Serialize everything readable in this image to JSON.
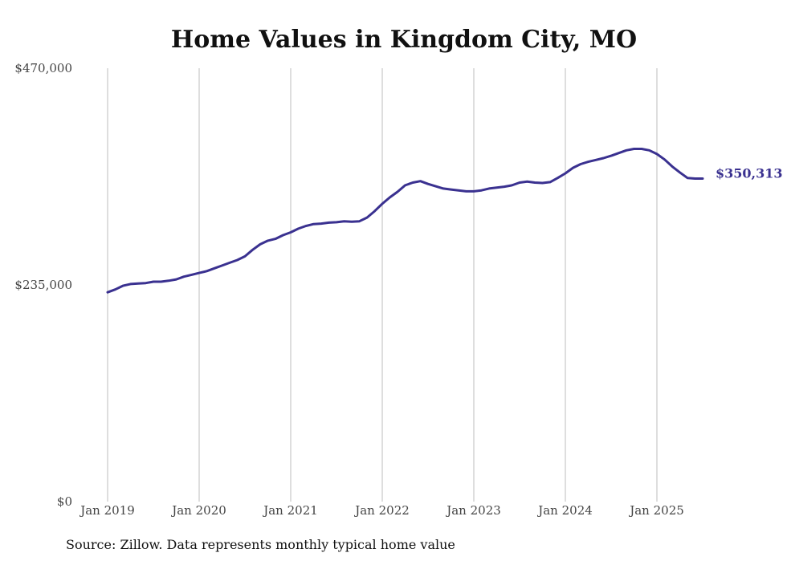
{
  "chart_data": {
    "type": "line",
    "title": "Home Values in Kingdom City, MO",
    "xlabel": "",
    "ylabel": "",
    "x_ticks": [
      "Jan 2019",
      "Jan 2020",
      "Jan 2021",
      "Jan 2022",
      "Jan 2023",
      "Jan 2024",
      "Jan 2025"
    ],
    "y_ticks": [
      "$0",
      "$235,000",
      "$470,000"
    ],
    "y_tick_values": [
      0,
      235000,
      470000
    ],
    "ylim": [
      0,
      470000
    ],
    "xlim": [
      "2019-01",
      "2025-12"
    ],
    "grid": "vertical",
    "end_label": "$350,313",
    "color": "#3a3190",
    "series": [
      {
        "x": [
          "2019-01",
          "2019-02",
          "2019-03",
          "2019-04",
          "2019-05",
          "2019-06",
          "2019-07",
          "2019-08",
          "2019-09",
          "2019-10",
          "2019-11",
          "2019-12",
          "2020-01",
          "2020-02",
          "2020-03",
          "2020-04",
          "2020-05",
          "2020-06",
          "2020-07",
          "2020-08",
          "2020-09",
          "2020-10",
          "2020-11",
          "2020-12",
          "2021-01",
          "2021-02",
          "2021-03",
          "2021-04",
          "2021-05",
          "2021-06",
          "2021-07",
          "2021-08",
          "2021-09",
          "2021-10",
          "2021-11",
          "2021-12",
          "2022-01",
          "2022-02",
          "2022-03",
          "2022-04",
          "2022-05",
          "2022-06",
          "2022-07",
          "2022-08",
          "2022-09",
          "2022-10",
          "2022-11",
          "2022-12",
          "2023-01",
          "2023-02",
          "2023-03",
          "2023-04",
          "2023-05",
          "2023-06",
          "2023-07",
          "2023-08",
          "2023-09",
          "2023-10",
          "2023-11",
          "2023-12",
          "2024-01",
          "2024-02",
          "2024-03",
          "2024-04",
          "2024-05",
          "2024-06",
          "2024-07",
          "2024-08",
          "2024-09",
          "2024-10",
          "2024-11",
          "2024-12",
          "2025-01",
          "2025-02",
          "2025-03",
          "2025-04",
          "2025-05",
          "2025-06",
          "2025-07"
        ],
        "values": [
          227000,
          230000,
          234000,
          236000,
          236500,
          237000,
          238500,
          238500,
          239500,
          241000,
          244000,
          246000,
          248000,
          250000,
          253000,
          256000,
          259000,
          262000,
          266000,
          273000,
          279000,
          283000,
          285000,
          289000,
          292000,
          296000,
          299000,
          301000,
          301500,
          302500,
          303000,
          304000,
          303500,
          304000,
          308000,
          315000,
          323000,
          330000,
          336000,
          343000,
          346000,
          347500,
          344500,
          342000,
          339500,
          338500,
          337500,
          336500,
          336500,
          337500,
          339500,
          340500,
          341500,
          343000,
          346000,
          347000,
          346000,
          345500,
          346500,
          351000,
          356000,
          362000,
          366000,
          368500,
          370500,
          372500,
          375000,
          378000,
          381000,
          382500,
          382500,
          381000,
          377000,
          371000,
          363500,
          357000,
          351000,
          350313,
          350313
        ]
      }
    ]
  },
  "source": "Source: Zillow. Data represents monthly typical home value"
}
